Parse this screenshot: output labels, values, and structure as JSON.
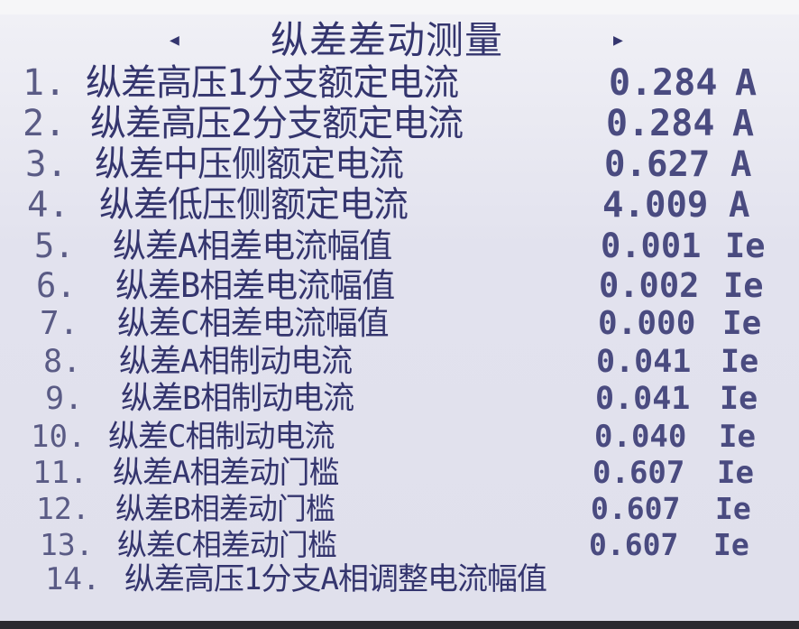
{
  "screen": {
    "title": "纵差差动测量",
    "nav_left_icon": "left-triangle-icon",
    "nav_right_icon": "right-triangle-icon",
    "left_arrow": "◀",
    "right_arrow": "▶",
    "colors": {
      "background": "#e6e6f0",
      "text": "#34356e"
    },
    "items": [
      {
        "num": "1.",
        "label": "纵差高压1分支额定电流",
        "value": "0.284",
        "unit": "A"
      },
      {
        "num": "2.",
        "label": "纵差高压2分支额定电流",
        "value": "0.284",
        "unit": "A"
      },
      {
        "num": "3.",
        "label": "纵差中压侧额定电流",
        "value": "0.627",
        "unit": "A"
      },
      {
        "num": "4.",
        "label": "纵差低压侧额定电流",
        "value": "4.009",
        "unit": "A"
      },
      {
        "num": "5.",
        "label": "纵差A相差电流幅值",
        "value": "0.001",
        "unit": "Ie"
      },
      {
        "num": "6.",
        "label": "纵差B相差电流幅值",
        "value": "0.002",
        "unit": "Ie"
      },
      {
        "num": "7.",
        "label": "纵差C相差电流幅值",
        "value": "0.000",
        "unit": "Ie"
      },
      {
        "num": "8.",
        "label": "纵差A相制动电流",
        "value": "0.041",
        "unit": "Ie"
      },
      {
        "num": "9.",
        "label": "纵差B相制动电流",
        "value": "0.041",
        "unit": "Ie"
      },
      {
        "num": "10.",
        "label": "纵差C相制动电流",
        "value": "0.040",
        "unit": "Ie"
      },
      {
        "num": "11.",
        "label": "纵差A相差动门槛",
        "value": "0.607",
        "unit": "Ie"
      },
      {
        "num": "12.",
        "label": "纵差B相差动门槛",
        "value": "0.607",
        "unit": "Ie"
      },
      {
        "num": "13.",
        "label": "纵差C相差动门槛",
        "value": "0.607",
        "unit": "Ie"
      },
      {
        "num": "14.",
        "label": "纵差高压1分支A相调整电流幅值",
        "value": "",
        "unit": ""
      }
    ]
  }
}
